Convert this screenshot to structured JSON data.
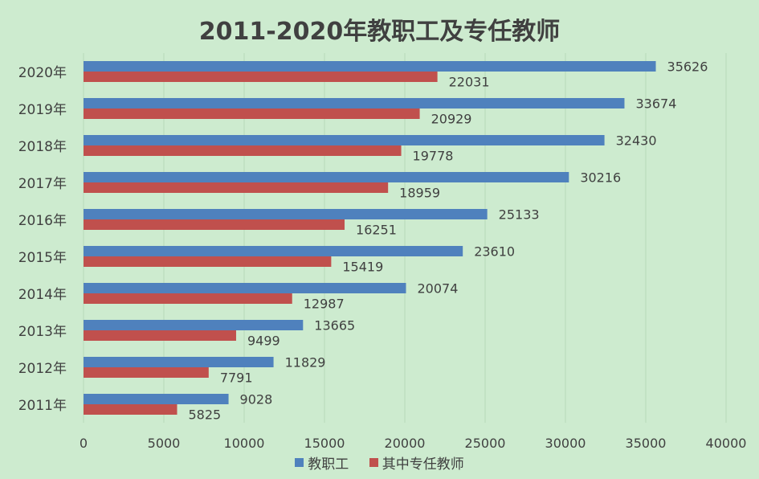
{
  "colors": {
    "background": "#cdebcf",
    "grid": "#b7d8ba",
    "text": "#404040",
    "series1": "#4f81bd",
    "series2": "#c0504d"
  },
  "chart_data": {
    "type": "bar",
    "orientation": "horizontal",
    "title": "2011-2020年教职工及专任教师",
    "categories": [
      "2011年",
      "2012年",
      "2013年",
      "2014年",
      "2015年",
      "2016年",
      "2017年",
      "2018年",
      "2019年",
      "2020年"
    ],
    "series": [
      {
        "name": "教职工",
        "color": "#4f81bd",
        "values": [
          9028,
          11829,
          13665,
          20074,
          23610,
          25133,
          30216,
          32430,
          33674,
          35626
        ]
      },
      {
        "name": "其中专任教师",
        "color": "#c0504d",
        "values": [
          5825,
          7791,
          9499,
          12987,
          15419,
          16251,
          18959,
          19778,
          20929,
          22031
        ]
      }
    ],
    "xlim": [
      0,
      40000
    ],
    "x_ticks": [
      "0",
      "5000",
      "10000",
      "15000",
      "20000",
      "25000",
      "30000",
      "35000",
      "40000"
    ],
    "grid": true,
    "legend_position": "bottom",
    "data_labels": true
  }
}
